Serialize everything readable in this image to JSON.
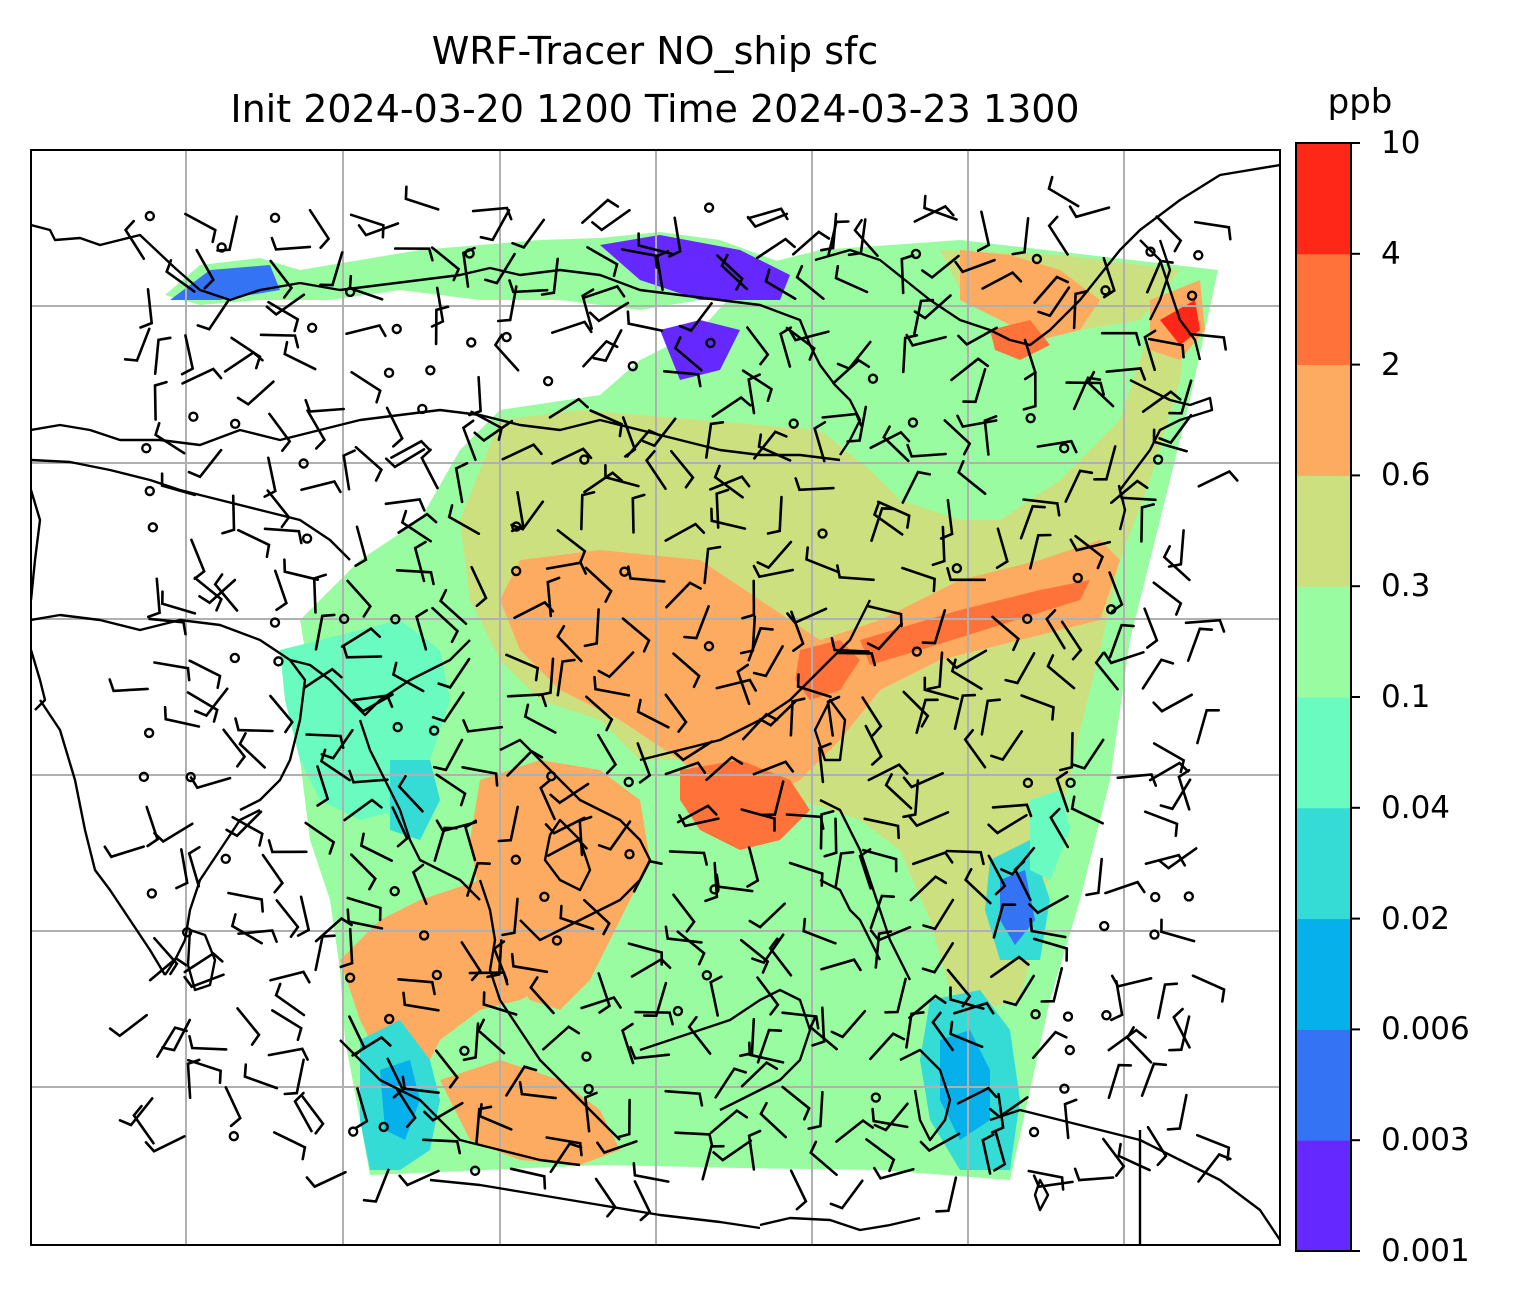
{
  "title": "WRF-Tracer NO_ship sfc",
  "subtitle": "Init 2024-03-20 1200 Time 2024-03-23 1300",
  "colorbar": {
    "unit": "ppb",
    "levels": [
      "0.001",
      "0.003",
      "0.006",
      "0.02",
      "0.04",
      "0.1",
      "0.3",
      "0.6",
      "2",
      "4",
      "10"
    ],
    "colors": [
      "#6528ff",
      "#3573f5",
      "#05b0eb",
      "#35dcd5",
      "#69fbc0",
      "#9afca0",
      "#cce07f",
      "#fdab61",
      "#ff723a",
      "#ff2717"
    ]
  },
  "map": {
    "projection": "Mercator",
    "gridlines": true,
    "features": [
      "coastlines",
      "wind barbs",
      "calm-wind circles"
    ],
    "field": "NO_ship surface concentration"
  }
}
